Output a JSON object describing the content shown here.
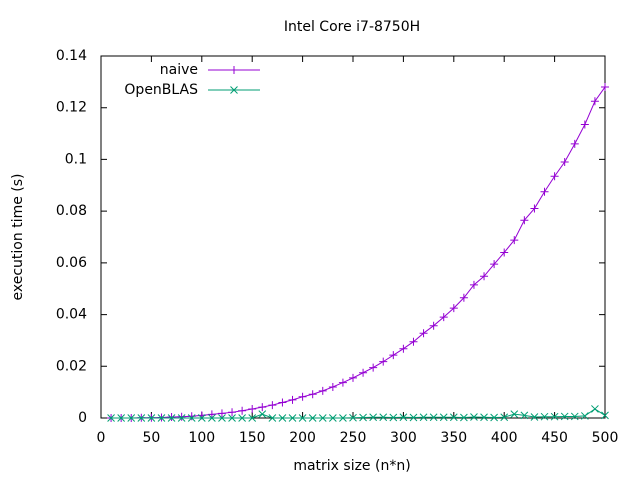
{
  "chart_data": {
    "type": "line",
    "title": "Intel Core i7-8750H",
    "xlabel": "matrix size (n*n)",
    "ylabel": "execution time (s)",
    "x": [
      10,
      20,
      30,
      40,
      50,
      60,
      70,
      80,
      90,
      100,
      110,
      120,
      130,
      140,
      150,
      160,
      170,
      180,
      190,
      200,
      210,
      220,
      230,
      240,
      250,
      260,
      270,
      280,
      290,
      300,
      310,
      320,
      330,
      340,
      350,
      360,
      370,
      380,
      390,
      400,
      410,
      420,
      430,
      440,
      450,
      460,
      470,
      480,
      490,
      500
    ],
    "series": [
      {
        "name": "naive",
        "color": "#9400d3",
        "marker": "plus",
        "values": [
          0,
          0,
          0,
          0.0001,
          0.0001,
          0.0002,
          0.0004,
          0.0005,
          0.0007,
          0.001,
          0.0014,
          0.0018,
          0.0022,
          0.0028,
          0.0035,
          0.0042,
          0.005,
          0.006,
          0.007,
          0.0082,
          0.0092,
          0.0105,
          0.012,
          0.0137,
          0.0155,
          0.0175,
          0.0195,
          0.0218,
          0.0243,
          0.0268,
          0.0295,
          0.0328,
          0.0357,
          0.039,
          0.0425,
          0.0465,
          0.0515,
          0.0548,
          0.0595,
          0.064,
          0.0688,
          0.0765,
          0.081,
          0.0875,
          0.0935,
          0.099,
          0.106,
          0.1135,
          0.1225,
          0.128
        ]
      },
      {
        "name": "OpenBLAS",
        "color": "#009e73",
        "marker": "cross",
        "values": [
          0,
          0,
          0,
          0,
          0,
          0,
          0,
          0,
          0,
          0,
          0,
          0,
          0,
          0,
          0,
          0.0015,
          0,
          0,
          0,
          0,
          0,
          0,
          0,
          0,
          0.0001,
          0.0002,
          0.0003,
          0.0003,
          0.0002,
          0.0003,
          0.0002,
          0.0003,
          0.0003,
          0.0003,
          0.0003,
          0.0002,
          0.0004,
          0.0003,
          0.0002,
          0.0003,
          0.0015,
          0.001,
          0.0004,
          0.0005,
          0.0005,
          0.0006,
          0.0006,
          0.0008,
          0.0035,
          0.001
        ]
      }
    ],
    "xlim": [
      0,
      500
    ],
    "xticks": [
      0,
      50,
      100,
      150,
      200,
      250,
      300,
      350,
      400,
      450,
      500
    ],
    "ylim": [
      0,
      0.14
    ],
    "yticks": [
      0,
      0.02,
      0.04,
      0.06,
      0.08,
      0.1,
      0.12,
      0.14
    ],
    "grid": false,
    "legend": "top-left"
  }
}
